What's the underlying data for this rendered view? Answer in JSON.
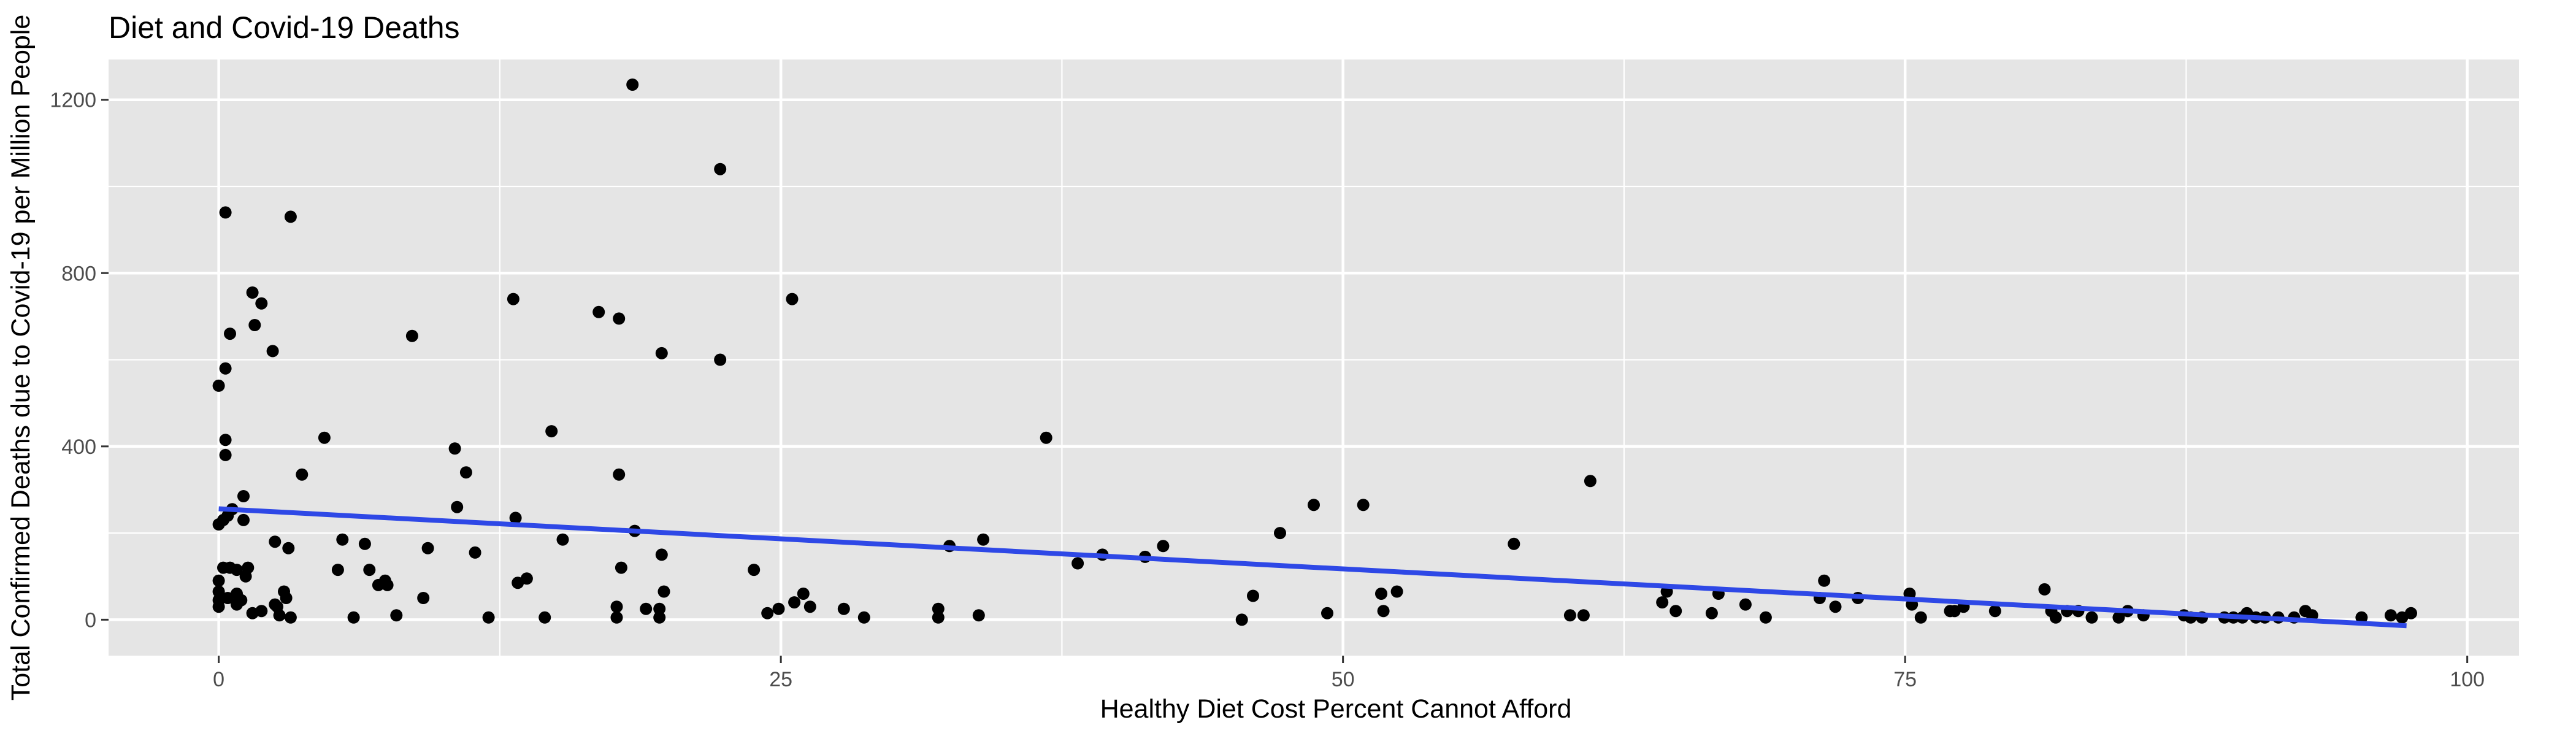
{
  "chart_data": {
    "type": "scatter",
    "title": "Diet and Covid-19 Deaths",
    "xlabel": "Healthy Diet Cost Percent Cannot Afford",
    "ylabel": "Total Confirmed Deaths due to Covid-19 per Million People",
    "xlim": [
      -4.9,
      102.3
    ],
    "ylim": [
      -83,
      1293
    ],
    "x_ticks": [
      0,
      25,
      50,
      75,
      100
    ],
    "y_ticks": [
      0,
      400,
      800,
      1200
    ],
    "x_tick_labels": [
      "0",
      "25",
      "50",
      "75",
      "100"
    ],
    "y_tick_labels": [
      "0",
      "400",
      "800",
      "1200"
    ],
    "grid": true,
    "legend": "none",
    "colors": {
      "panel": "#e5e5e5",
      "grid": "#ffffff",
      "points": "#000000",
      "trend": "#2e48e6",
      "tick_text": "#4d4d4d"
    },
    "trend_line": {
      "x": [
        0,
        97.3
      ],
      "y": [
        256,
        -14
      ]
    },
    "points": [
      {
        "x": 0.0,
        "y": 540
      },
      {
        "x": 0.0,
        "y": 220
      },
      {
        "x": 0.0,
        "y": 90
      },
      {
        "x": 0.0,
        "y": 65
      },
      {
        "x": 0.0,
        "y": 45
      },
      {
        "x": 0.0,
        "y": 30
      },
      {
        "x": 0.2,
        "y": 230
      },
      {
        "x": 0.2,
        "y": 120
      },
      {
        "x": 0.3,
        "y": 940
      },
      {
        "x": 0.3,
        "y": 580
      },
      {
        "x": 0.3,
        "y": 415
      },
      {
        "x": 0.3,
        "y": 380
      },
      {
        "x": 0.4,
        "y": 240
      },
      {
        "x": 0.4,
        "y": 50
      },
      {
        "x": 0.5,
        "y": 660
      },
      {
        "x": 0.5,
        "y": 120
      },
      {
        "x": 0.6,
        "y": 255
      },
      {
        "x": 0.8,
        "y": 115
      },
      {
        "x": 0.8,
        "y": 60
      },
      {
        "x": 0.8,
        "y": 35
      },
      {
        "x": 1.0,
        "y": 45
      },
      {
        "x": 1.1,
        "y": 285
      },
      {
        "x": 1.1,
        "y": 230
      },
      {
        "x": 1.2,
        "y": 100
      },
      {
        "x": 1.3,
        "y": 120
      },
      {
        "x": 1.5,
        "y": 15
      },
      {
        "x": 1.5,
        "y": 755
      },
      {
        "x": 1.6,
        "y": 680
      },
      {
        "x": 1.9,
        "y": 730
      },
      {
        "x": 1.9,
        "y": 20
      },
      {
        "x": 2.4,
        "y": 620
      },
      {
        "x": 2.5,
        "y": 180
      },
      {
        "x": 2.5,
        "y": 35
      },
      {
        "x": 2.6,
        "y": 30
      },
      {
        "x": 2.7,
        "y": 10
      },
      {
        "x": 2.9,
        "y": 65
      },
      {
        "x": 3.0,
        "y": 50
      },
      {
        "x": 3.1,
        "y": 165
      },
      {
        "x": 3.2,
        "y": 930
      },
      {
        "x": 3.2,
        "y": 5
      },
      {
        "x": 3.7,
        "y": 335
      },
      {
        "x": 4.7,
        "y": 420
      },
      {
        "x": 5.3,
        "y": 115
      },
      {
        "x": 5.5,
        "y": 185
      },
      {
        "x": 6.0,
        "y": 5
      },
      {
        "x": 6.5,
        "y": 175
      },
      {
        "x": 6.7,
        "y": 115
      },
      {
        "x": 7.1,
        "y": 80
      },
      {
        "x": 7.4,
        "y": 90
      },
      {
        "x": 7.5,
        "y": 80
      },
      {
        "x": 7.9,
        "y": 10
      },
      {
        "x": 8.6,
        "y": 655
      },
      {
        "x": 9.1,
        "y": 50
      },
      {
        "x": 9.3,
        "y": 165
      },
      {
        "x": 10.5,
        "y": 395
      },
      {
        "x": 10.6,
        "y": 260
      },
      {
        "x": 11.0,
        "y": 340
      },
      {
        "x": 11.4,
        "y": 155
      },
      {
        "x": 12.0,
        "y": 5
      },
      {
        "x": 13.1,
        "y": 740
      },
      {
        "x": 13.2,
        "y": 235
      },
      {
        "x": 13.3,
        "y": 85
      },
      {
        "x": 13.7,
        "y": 95
      },
      {
        "x": 14.5,
        "y": 5
      },
      {
        "x": 14.8,
        "y": 435
      },
      {
        "x": 15.3,
        "y": 185
      },
      {
        "x": 16.9,
        "y": 710
      },
      {
        "x": 17.7,
        "y": 5
      },
      {
        "x": 17.7,
        "y": 30
      },
      {
        "x": 17.8,
        "y": 695
      },
      {
        "x": 17.8,
        "y": 335
      },
      {
        "x": 17.9,
        "y": 120
      },
      {
        "x": 18.4,
        "y": 1235
      },
      {
        "x": 18.5,
        "y": 205
      },
      {
        "x": 19.0,
        "y": 25
      },
      {
        "x": 19.6,
        "y": 5
      },
      {
        "x": 19.6,
        "y": 25
      },
      {
        "x": 19.7,
        "y": 615
      },
      {
        "x": 19.7,
        "y": 150
      },
      {
        "x": 19.8,
        "y": 65
      },
      {
        "x": 22.3,
        "y": 1040
      },
      {
        "x": 22.3,
        "y": 600
      },
      {
        "x": 23.8,
        "y": 115
      },
      {
        "x": 24.4,
        "y": 15
      },
      {
        "x": 24.9,
        "y": 25
      },
      {
        "x": 25.5,
        "y": 740
      },
      {
        "x": 25.6,
        "y": 40
      },
      {
        "x": 26.0,
        "y": 60
      },
      {
        "x": 26.3,
        "y": 30
      },
      {
        "x": 27.8,
        "y": 25
      },
      {
        "x": 28.7,
        "y": 5
      },
      {
        "x": 32.0,
        "y": 5
      },
      {
        "x": 32.0,
        "y": 25
      },
      {
        "x": 32.5,
        "y": 170
      },
      {
        "x": 33.8,
        "y": 10
      },
      {
        "x": 34.0,
        "y": 185
      },
      {
        "x": 36.8,
        "y": 420
      },
      {
        "x": 38.2,
        "y": 130
      },
      {
        "x": 39.3,
        "y": 150
      },
      {
        "x": 41.2,
        "y": 145
      },
      {
        "x": 42.0,
        "y": 170
      },
      {
        "x": 45.5,
        "y": 0
      },
      {
        "x": 46.0,
        "y": 55
      },
      {
        "x": 47.2,
        "y": 200
      },
      {
        "x": 48.7,
        "y": 265
      },
      {
        "x": 49.3,
        "y": 15
      },
      {
        "x": 50.9,
        "y": 265
      },
      {
        "x": 51.7,
        "y": 60
      },
      {
        "x": 51.8,
        "y": 20
      },
      {
        "x": 52.4,
        "y": 65
      },
      {
        "x": 57.6,
        "y": 175
      },
      {
        "x": 60.1,
        "y": 10
      },
      {
        "x": 60.7,
        "y": 10
      },
      {
        "x": 61.0,
        "y": 320
      },
      {
        "x": 64.2,
        "y": 40
      },
      {
        "x": 64.4,
        "y": 65
      },
      {
        "x": 64.8,
        "y": 20
      },
      {
        "x": 66.4,
        "y": 15
      },
      {
        "x": 66.7,
        "y": 60
      },
      {
        "x": 67.9,
        "y": 35
      },
      {
        "x": 68.8,
        "y": 5
      },
      {
        "x": 71.2,
        "y": 50
      },
      {
        "x": 71.4,
        "y": 90
      },
      {
        "x": 71.9,
        "y": 30
      },
      {
        "x": 72.9,
        "y": 50
      },
      {
        "x": 75.2,
        "y": 60
      },
      {
        "x": 75.3,
        "y": 35
      },
      {
        "x": 75.7,
        "y": 5
      },
      {
        "x": 77.0,
        "y": 20
      },
      {
        "x": 77.2,
        "y": 20
      },
      {
        "x": 77.6,
        "y": 30
      },
      {
        "x": 79.0,
        "y": 20
      },
      {
        "x": 81.2,
        "y": 70
      },
      {
        "x": 81.5,
        "y": 20
      },
      {
        "x": 81.7,
        "y": 5
      },
      {
        "x": 82.2,
        "y": 20
      },
      {
        "x": 82.7,
        "y": 20
      },
      {
        "x": 83.3,
        "y": 5
      },
      {
        "x": 84.5,
        "y": 5
      },
      {
        "x": 84.9,
        "y": 20
      },
      {
        "x": 85.6,
        "y": 10
      },
      {
        "x": 87.4,
        "y": 10
      },
      {
        "x": 87.7,
        "y": 5
      },
      {
        "x": 88.2,
        "y": 5
      },
      {
        "x": 89.2,
        "y": 5
      },
      {
        "x": 89.6,
        "y": 5
      },
      {
        "x": 90.0,
        "y": 5
      },
      {
        "x": 90.2,
        "y": 15
      },
      {
        "x": 90.6,
        "y": 5
      },
      {
        "x": 91.0,
        "y": 5
      },
      {
        "x": 91.6,
        "y": 5
      },
      {
        "x": 92.3,
        "y": 5
      },
      {
        "x": 92.8,
        "y": 20
      },
      {
        "x": 93.1,
        "y": 10
      },
      {
        "x": 95.3,
        "y": 5
      },
      {
        "x": 96.6,
        "y": 10
      },
      {
        "x": 97.1,
        "y": 5
      },
      {
        "x": 97.5,
        "y": 15
      }
    ]
  }
}
